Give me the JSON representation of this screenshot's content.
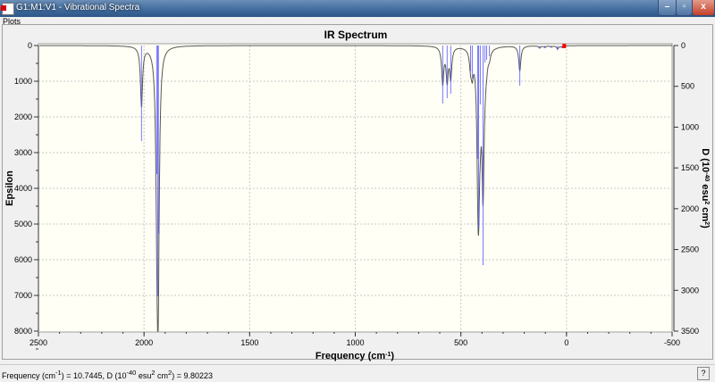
{
  "window": {
    "title": "G1:M1:V1 - Vibrational Spectra",
    "minimize": "–",
    "maximize": "▫",
    "close": "x"
  },
  "menu": {
    "plots": "Plots"
  },
  "status": {
    "readout_html": "Frequency (cm<sup>-1</sup>) = 10.7445, D (10<sup>-40</sup> esu<sup>2</sup> cm<sup>2</sup>) = 9.80223",
    "help": "?"
  },
  "colors": {
    "plot_bg": "#fffff6",
    "stick": "#5555ff",
    "curve": "#000000",
    "marker": "#ff0000",
    "grid": "#c8c8c8"
  },
  "chart_data": {
    "type": "line",
    "title": "IR Spectrum",
    "xlabel": "Frequency (cm⁻¹)",
    "ylabel": "Epsilon",
    "y2label": "D (10⁻⁴⁰ esu² cm²)",
    "xlim": [
      2500,
      -500
    ],
    "ylim": [
      0,
      8000
    ],
    "y2lim": [
      0,
      3500
    ],
    "y_inverted": true,
    "x_ticks": [
      2500,
      2000,
      1500,
      1000,
      500,
      0,
      -500
    ],
    "y_ticks": [
      0,
      1000,
      2000,
      3000,
      4000,
      5000,
      6000,
      7000,
      8000
    ],
    "y2_ticks": [
      0,
      500,
      1000,
      1500,
      2000,
      2500,
      3000,
      3500
    ],
    "grid": true,
    "sticks": {
      "frequency": [
        2012,
        1940,
        1935,
        1932,
        586,
        565,
        548,
        454,
        446,
        420,
        416,
        408,
        395,
        386,
        378,
        365,
        221,
        127,
        102,
        72,
        42,
        21
      ],
      "D": [
        1170,
        1575,
        3074,
        2308,
        711,
        645,
        590,
        317,
        405,
        1389,
        2243,
        722,
        2691,
        208,
        175,
        131,
        492,
        40,
        30,
        25,
        60,
        30
      ]
    },
    "marker": {
      "frequency": 10.7445,
      "D": 9.80223
    }
  }
}
